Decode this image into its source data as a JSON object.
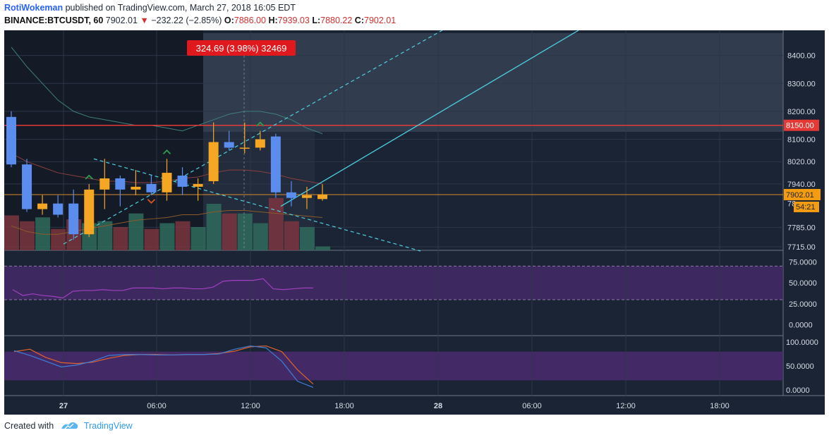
{
  "header": {
    "author": "RotiWokeman",
    "published_text": "published on TradingView.com, March 27, 2018 16:05 EDT",
    "symbol": "BINANCE:BTCUSDT, 60",
    "last_price": "7902.01",
    "change_arrow": "▼",
    "change": "−232.22 (−2.85%)",
    "open_label": "O:",
    "open": "7886.00",
    "high_label": "H:",
    "high": "7939.03",
    "low_label": "L:",
    "low": "7880.22",
    "close_label": "C:",
    "close": "7902.01"
  },
  "footer": {
    "created_with": "Created with",
    "brand": "TradingView"
  },
  "colors": {
    "background": "#1b2434",
    "up_candle": "#f5a623",
    "down_candle": "#5b8def",
    "up_volume": "#2f6b5c",
    "down_volume": "#7a3540",
    "resistance": "#e53935",
    "trendline": "#4dd0e1",
    "rsi": "#a040c0",
    "stoch_k": "#3d7fd9",
    "stoch_d": "#e0622f",
    "band": "#4a2a6e"
  },
  "chart_data": [
    {
      "type": "candlestick",
      "symbol": "BINANCE:BTCUSDT",
      "interval": "60",
      "x_tick_labels": [
        "27",
        "06:00",
        "12:00",
        "18:00",
        "28",
        "06:00",
        "12:00",
        "18:00"
      ],
      "y_tick_labels": [
        "8400.00",
        "8300.00",
        "8200.00",
        "8100.00",
        "8020.00",
        "7940.00",
        "7785.00",
        "7715.00"
      ],
      "ylim": [
        7700,
        8490
      ],
      "candles": [
        {
          "o": 8180,
          "h": 8200,
          "l": 8000,
          "c": 8010
        },
        {
          "o": 8010,
          "h": 8030,
          "l": 7840,
          "c": 7850
        },
        {
          "o": 7850,
          "h": 7900,
          "l": 7830,
          "c": 7870
        },
        {
          "o": 7870,
          "h": 7900,
          "l": 7820,
          "c": 7830
        },
        {
          "o": 7870,
          "h": 7920,
          "l": 7740,
          "c": 7760
        },
        {
          "o": 7760,
          "h": 7940,
          "l": 7750,
          "c": 7920
        },
        {
          "o": 7920,
          "h": 8030,
          "l": 7850,
          "c": 7960
        },
        {
          "o": 7960,
          "h": 7970,
          "l": 7860,
          "c": 7920
        },
        {
          "o": 7920,
          "h": 7990,
          "l": 7900,
          "c": 7930
        },
        {
          "o": 7940,
          "h": 7970,
          "l": 7900,
          "c": 7910
        },
        {
          "o": 7910,
          "h": 8030,
          "l": 7880,
          "c": 7980
        },
        {
          "o": 7970,
          "h": 8000,
          "l": 7900,
          "c": 7930
        },
        {
          "o": 7930,
          "h": 7960,
          "l": 7880,
          "c": 7940
        },
        {
          "o": 7950,
          "h": 8160,
          "l": 7940,
          "c": 8090
        },
        {
          "o": 8090,
          "h": 8130,
          "l": 8060,
          "c": 8070
        },
        {
          "o": 8070,
          "h": 8160,
          "l": 8050,
          "c": 8070
        },
        {
          "o": 8070,
          "h": 8130,
          "l": 8060,
          "c": 8100
        },
        {
          "o": 8110,
          "h": 8120,
          "l": 7890,
          "c": 7910
        },
        {
          "o": 7910,
          "h": 7950,
          "l": 7860,
          "c": 7890
        },
        {
          "o": 7890,
          "h": 7930,
          "l": 7850,
          "c": 7900
        },
        {
          "o": 7886,
          "h": 7939.03,
          "l": 7880.22,
          "c": 7902.01
        }
      ],
      "volume_relative": [
        0.9,
        0.75,
        0.85,
        0.55,
        0.8,
        0.7,
        0.75,
        0.6,
        0.95,
        0.55,
        0.7,
        0.75,
        0.6,
        1.2,
        0.95,
        0.95,
        0.7,
        1.35,
        0.75,
        0.6,
        0.1
      ],
      "signal_markers": [
        {
          "index": 5,
          "direction": "up"
        },
        {
          "index": 9,
          "direction": "down"
        },
        {
          "index": 10,
          "direction": "up"
        },
        {
          "index": 16,
          "direction": "up"
        }
      ],
      "resistance_level": 8150,
      "annotations": [
        {
          "text": "8150.00",
          "kind": "price-label"
        },
        {
          "text": "7902.01",
          "kind": "price-label"
        },
        {
          "text": "54:21",
          "kind": "countdown"
        },
        {
          "text": "324.69 (3.98%) 32469",
          "kind": "measure"
        }
      ],
      "hidden_axis_label": "78"
    },
    {
      "type": "line",
      "indicator": "RSI",
      "y_tick_labels": [
        "75.0000",
        "50.0000",
        "25.0000",
        "0.0000"
      ],
      "ylim": [
        -12,
        88
      ],
      "bands": [
        70,
        30
      ],
      "values": [
        42,
        35,
        37,
        35,
        34,
        32,
        40,
        41,
        41,
        42,
        41,
        41,
        44,
        44,
        44,
        43,
        44,
        44,
        43,
        43,
        45,
        52,
        53,
        53,
        53,
        55,
        43,
        42,
        43,
        44,
        44
      ]
    },
    {
      "type": "line",
      "indicator": "Stochastic",
      "y_tick_labels": [
        "100.0000",
        "50.0000",
        "0.0000"
      ],
      "ylim": [
        -12,
        112
      ],
      "bands": [
        80,
        20
      ],
      "series": [
        {
          "key": "k",
          "values": [
            82,
            72,
            60,
            48,
            52,
            60,
            72,
            74,
            74,
            73,
            73,
            74,
            74,
            75,
            85,
            92,
            88,
            60,
            18,
            5
          ]
        },
        {
          "key": "d",
          "values": [
            80,
            85,
            68,
            57,
            55,
            58,
            66,
            72,
            74,
            74,
            73,
            74,
            74,
            76,
            81,
            90,
            92,
            80,
            42,
            12
          ]
        }
      ]
    }
  ]
}
